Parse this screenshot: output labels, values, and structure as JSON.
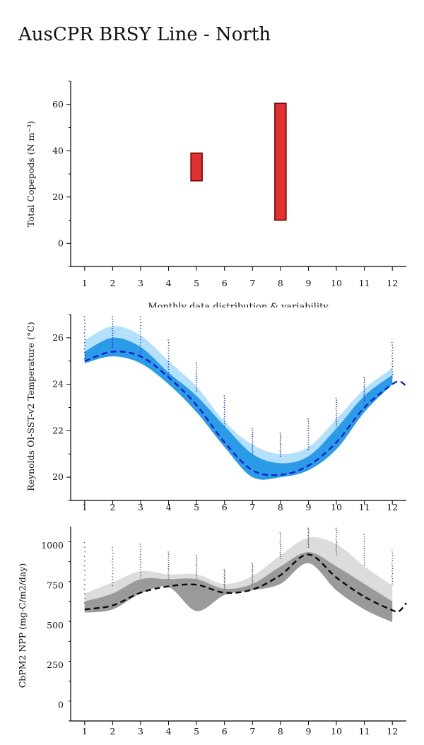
{
  "page": {
    "title": "AusCPR BRSY Line - North"
  },
  "chart_data": [
    {
      "type": "bar",
      "name": "copepods",
      "ylabel": "Total Copepods (N m⁻³)",
      "xlabel": "Monthly data distribution & variability",
      "xlim": [
        0.5,
        12.5
      ],
      "ylim": [
        -10,
        70
      ],
      "xticks": [
        1,
        2,
        3,
        4,
        5,
        6,
        7,
        8,
        9,
        10,
        11,
        12
      ],
      "yticks": [
        0,
        20,
        40,
        60
      ],
      "bar_color": "#e03030",
      "bar_edge": "#6b0000",
      "bars": [
        {
          "month": 5,
          "low": 27,
          "high": 39
        },
        {
          "month": 8,
          "low": 10,
          "high": 60.5
        }
      ]
    },
    {
      "type": "area",
      "name": "sst",
      "ylabel": "Reynolds OI-SST-v2 Temperature (°C)",
      "xlim": [
        0.5,
        12.5
      ],
      "ylim": [
        19,
        27
      ],
      "xticks": [
        1,
        2,
        3,
        4,
        5,
        6,
        7,
        8,
        9,
        10,
        11,
        12
      ],
      "yticks": [
        20,
        22,
        24,
        26
      ],
      "colors": {
        "outer": "#b3e0fb",
        "inner": "#2b9be8",
        "line": "#0b1ec9",
        "points": "#1a2fd0"
      },
      "series": [
        {
          "name": "outer_low",
          "x": [
            1,
            2,
            3,
            4,
            5,
            6,
            7,
            8,
            9,
            10,
            11,
            12
          ],
          "y": [
            25.1,
            25.2,
            25.0,
            24.1,
            22.9,
            21.3,
            20.1,
            20.2,
            20.5,
            21.6,
            23.0,
            24.0
          ]
        },
        {
          "name": "outer_high",
          "x": [
            1,
            2,
            3,
            4,
            5,
            6,
            7,
            8,
            9,
            10,
            11,
            12
          ],
          "y": [
            25.9,
            26.5,
            26.1,
            25.0,
            23.9,
            22.4,
            21.4,
            21.0,
            21.3,
            22.5,
            23.8,
            24.7
          ]
        },
        {
          "name": "inner_low",
          "x": [
            1,
            2,
            3,
            4,
            5,
            6,
            7,
            8,
            9,
            10,
            11,
            12
          ],
          "y": [
            24.9,
            25.2,
            24.9,
            24.0,
            22.8,
            21.3,
            20.0,
            20.0,
            20.3,
            21.2,
            22.8,
            24.0
          ]
        },
        {
          "name": "inner_high",
          "x": [
            1,
            2,
            3,
            4,
            5,
            6,
            7,
            8,
            9,
            10,
            11,
            12
          ],
          "y": [
            25.4,
            26.0,
            25.6,
            24.5,
            23.5,
            22.2,
            21.0,
            20.6,
            20.9,
            22.1,
            23.5,
            24.4
          ]
        },
        {
          "name": "median",
          "x": [
            1,
            2,
            3,
            4,
            5,
            6,
            7,
            8,
            9,
            10,
            11,
            12,
            12.3,
            12.5
          ],
          "y": [
            25.0,
            25.4,
            25.2,
            24.3,
            23.1,
            21.5,
            20.3,
            20.1,
            20.5,
            21.5,
            23.0,
            24.0,
            24.1,
            23.9
          ]
        }
      ],
      "point_columns": [
        {
          "x": 1,
          "low": 25.1,
          "high": 26.9
        },
        {
          "x": 2,
          "low": 25.6,
          "high": 26.9
        },
        {
          "x": 3,
          "low": 25.3,
          "high": 26.9
        },
        {
          "x": 4,
          "low": 24.4,
          "high": 25.9
        },
        {
          "x": 5,
          "low": 23.7,
          "high": 24.9
        },
        {
          "x": 6,
          "low": 22.2,
          "high": 23.5
        },
        {
          "x": 7,
          "low": 21.0,
          "high": 22.1
        },
        {
          "x": 8,
          "low": 20.9,
          "high": 21.9
        },
        {
          "x": 9,
          "low": 21.2,
          "high": 22.5
        },
        {
          "x": 10,
          "low": 22.2,
          "high": 23.4
        },
        {
          "x": 11,
          "low": 23.3,
          "high": 24.3
        },
        {
          "x": 12,
          "low": 24.3,
          "high": 25.8
        }
      ]
    },
    {
      "type": "area",
      "name": "npp",
      "ylabel": "CbPM2 NPP (mg-C/m2/day)",
      "xlim": [
        0.5,
        12.5
      ],
      "ylim": [
        -100,
        1120
      ],
      "xticks": [
        1,
        2,
        3,
        4,
        5,
        6,
        7,
        8,
        9,
        10,
        11,
        12
      ],
      "yticks": [
        0,
        250,
        500,
        750,
        1000
      ],
      "colors": {
        "outer": "#dcdcdc",
        "inner": "#9a9a9a",
        "line": "#0a0a0a",
        "points": "#555555"
      },
      "series": [
        {
          "name": "outer_low",
          "x": [
            1,
            2,
            3,
            4,
            5,
            6,
            7,
            8,
            9,
            10,
            11,
            12
          ],
          "y": [
            590,
            650,
            740,
            760,
            620,
            700,
            740,
            800,
            920,
            760,
            640,
            560
          ]
        },
        {
          "name": "outer_high",
          "x": [
            1,
            2,
            3,
            4,
            5,
            6,
            7,
            8,
            9,
            10,
            11,
            12
          ],
          "y": [
            700,
            770,
            840,
            820,
            820,
            760,
            810,
            940,
            1050,
            1010,
            870,
            750
          ]
        },
        {
          "name": "inner_low",
          "x": [
            1,
            2,
            3,
            4,
            5,
            6,
            7,
            8,
            9,
            10,
            11,
            12
          ],
          "y": [
            580,
            600,
            700,
            740,
            590,
            690,
            720,
            760,
            890,
            720,
            600,
            520
          ]
        },
        {
          "name": "inner_high",
          "x": [
            1,
            2,
            3,
            4,
            5,
            6,
            7,
            8,
            9,
            10,
            11,
            12
          ],
          "y": [
            650,
            700,
            790,
            790,
            790,
            730,
            760,
            870,
            960,
            870,
            760,
            650
          ]
        },
        {
          "name": "median",
          "x": [
            1,
            2,
            3,
            4,
            5,
            6,
            7,
            8,
            9,
            10,
            11,
            12,
            12.25,
            12.5
          ],
          "y": [
            600,
            625,
            705,
            745,
            755,
            705,
            725,
            815,
            945,
            800,
            680,
            595,
            590,
            640
          ]
        }
      ],
      "point_columns": [
        {
          "x": 1,
          "low": 640,
          "high": 1020
        },
        {
          "x": 2,
          "low": 750,
          "high": 990
        },
        {
          "x": 3,
          "low": 800,
          "high": 1010
        },
        {
          "x": 4,
          "low": 790,
          "high": 960
        },
        {
          "x": 5,
          "low": 790,
          "high": 940
        },
        {
          "x": 6,
          "low": 730,
          "high": 850
        },
        {
          "x": 7,
          "low": 760,
          "high": 890
        },
        {
          "x": 8,
          "low": 920,
          "high": 1080
        },
        {
          "x": 9,
          "low": 990,
          "high": 1110
        },
        {
          "x": 10,
          "low": 940,
          "high": 1110
        },
        {
          "x": 11,
          "low": 880,
          "high": 1070
        },
        {
          "x": 12,
          "low": 760,
          "high": 970
        }
      ]
    }
  ]
}
